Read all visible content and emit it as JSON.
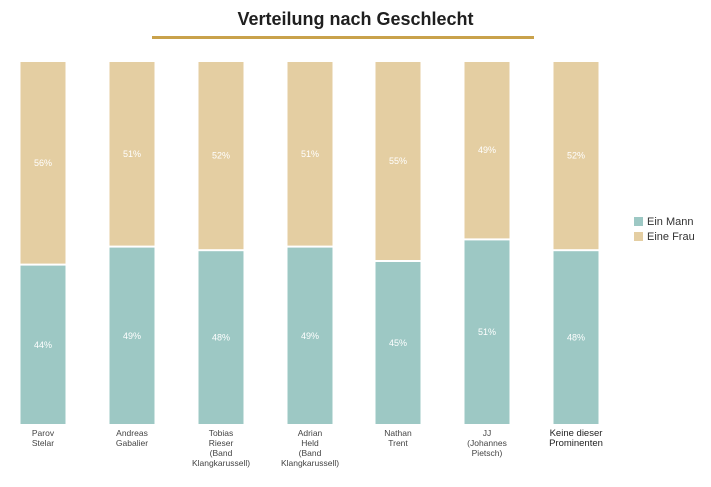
{
  "chart_data": {
    "type": "bar",
    "stacked": true,
    "title": "Verteilung nach Geschlecht",
    "categories": [
      [
        "Parov",
        "Stelar"
      ],
      [
        "Andreas",
        "Gabalier"
      ],
      [
        "Tobias",
        "Rieser",
        "(Band",
        "Klangkarussell)"
      ],
      [
        "Adrian",
        "Held",
        "(Band",
        "Klangkarussell)"
      ],
      [
        "Nathan",
        "Trent"
      ],
      [
        "JJ",
        "(Johannes",
        "Pietsch)"
      ],
      [
        "Keine dieser",
        "Prominenten"
      ]
    ],
    "series": [
      {
        "name": "Ein Mann",
        "values": [
          44,
          49,
          48,
          49,
          45,
          51,
          48
        ],
        "labels": [
          "44%",
          "49%",
          "48%",
          "49%",
          "45%",
          "51%",
          "48%"
        ],
        "color": "#9dc8c4"
      },
      {
        "name": "Eine Frau",
        "values": [
          56,
          51,
          52,
          51,
          55,
          49,
          52
        ],
        "labels": [
          "56%",
          "51%",
          "52%",
          "51%",
          "55%",
          "49%",
          "52%"
        ],
        "color": "#e4ceA2"
      }
    ],
    "ylim": [
      0,
      100
    ],
    "legend_position": "right"
  }
}
